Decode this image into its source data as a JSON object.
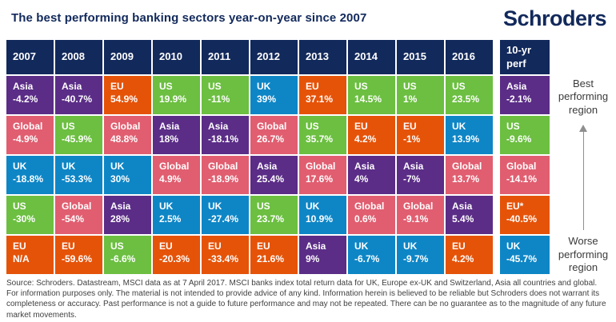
{
  "title": "The best performing banking sectors year-on-year since 2007",
  "logo": "Schroders",
  "annotations": {
    "best": "Best performing region",
    "worse": "Worse performing region"
  },
  "footer": "Source: Schroders. Datastream, MSCI data as at 7 April 2017. MSCI banks index total return data for UK, Europe ex-UK and Switzerland, Asia all countries and global. For information purposes only. The material is not intended to provide advice of any kind. Information herein is believed to be reliable but Schroders does not warrant its completeness or accuracy. Past performance is not a guide to future performance and may not be repeated. There can be no guarantee as to the magnitude of any future market movements.",
  "chart_data": {
    "type": "table",
    "title": "The best performing banking sectors year-on-year since 2007",
    "columns": [
      "2007",
      "2008",
      "2009",
      "2010",
      "2011",
      "2012",
      "2013",
      "2014",
      "2015",
      "2016"
    ],
    "extra_column": "10-yr perf",
    "header_bg": "#12295B",
    "region_colors": {
      "Asia": "#5B2D87",
      "US": "#6CBF41",
      "EU": "#E55309",
      "Global": "#E05E70",
      "UK": "#0E86C6"
    },
    "rows": [
      {
        "rank": 1,
        "cells": [
          {
            "region": "Asia",
            "value": "-4.2%"
          },
          {
            "region": "Asia",
            "value": "-40.7%"
          },
          {
            "region": "EU",
            "value": "54.9%"
          },
          {
            "region": "US",
            "value": "19.9%"
          },
          {
            "region": "US",
            "value": "-11%"
          },
          {
            "region": "UK",
            "value": "39%"
          },
          {
            "region": "EU",
            "value": "37.1%"
          },
          {
            "region": "US",
            "value": "14.5%"
          },
          {
            "region": "US",
            "value": "1%"
          },
          {
            "region": "US",
            "value": "23.5%"
          }
        ],
        "ten_year": {
          "region": "Asia",
          "value": "-2.1%"
        }
      },
      {
        "rank": 2,
        "cells": [
          {
            "region": "Global",
            "value": "-4.9%"
          },
          {
            "region": "US",
            "value": "-45.9%"
          },
          {
            "region": "Global",
            "value": "48.8%"
          },
          {
            "region": "Asia",
            "value": "18%"
          },
          {
            "region": "Asia",
            "value": "-18.1%"
          },
          {
            "region": "Global",
            "value": "26.7%"
          },
          {
            "region": "US",
            "value": "35.7%"
          },
          {
            "region": "EU",
            "value": "4.2%"
          },
          {
            "region": "EU",
            "value": "-1%"
          },
          {
            "region": "UK",
            "value": "13.9%"
          }
        ],
        "ten_year": {
          "region": "US",
          "value": "-9.6%"
        }
      },
      {
        "rank": 3,
        "cells": [
          {
            "region": "UK",
            "value": "-18.8%"
          },
          {
            "region": "UK",
            "value": "-53.3%"
          },
          {
            "region": "UK",
            "value": "30%"
          },
          {
            "region": "Global",
            "value": "4.9%"
          },
          {
            "region": "Global",
            "value": "-18.9%"
          },
          {
            "region": "Asia",
            "value": "25.4%"
          },
          {
            "region": "Global",
            "value": "17.6%"
          },
          {
            "region": "Asia",
            "value": "4%"
          },
          {
            "region": "Asia",
            "value": "-7%"
          },
          {
            "region": "Global",
            "value": "13.7%"
          }
        ],
        "ten_year": {
          "region": "Global",
          "value": "-14.1%"
        }
      },
      {
        "rank": 4,
        "cells": [
          {
            "region": "US",
            "value": "-30%"
          },
          {
            "region": "Global",
            "value": "-54%"
          },
          {
            "region": "Asia",
            "value": "28%"
          },
          {
            "region": "UK",
            "value": "2.5%"
          },
          {
            "region": "UK",
            "value": "-27.4%"
          },
          {
            "region": "US",
            "value": "23.7%"
          },
          {
            "region": "UK",
            "value": "10.9%"
          },
          {
            "region": "Global",
            "value": "0.6%"
          },
          {
            "region": "Global",
            "value": "-9.1%"
          },
          {
            "region": "Asia",
            "value": "5.4%"
          }
        ],
        "ten_year": {
          "region": "EU*",
          "value": "-40.5%"
        }
      },
      {
        "rank": 5,
        "cells": [
          {
            "region": "EU",
            "value": "N/A"
          },
          {
            "region": "EU",
            "value": "-59.6%"
          },
          {
            "region": "US",
            "value": "-6.6%"
          },
          {
            "region": "EU",
            "value": "-20.3%"
          },
          {
            "region": "EU",
            "value": "-33.4%"
          },
          {
            "region": "EU",
            "value": "21.6%"
          },
          {
            "region": "Asia",
            "value": "9%"
          },
          {
            "region": "UK",
            "value": "-6.7%"
          },
          {
            "region": "UK",
            "value": "-9.7%"
          },
          {
            "region": "EU",
            "value": "4.2%"
          }
        ],
        "ten_year": {
          "region": "UK",
          "value": "-45.7%"
        }
      }
    ]
  }
}
